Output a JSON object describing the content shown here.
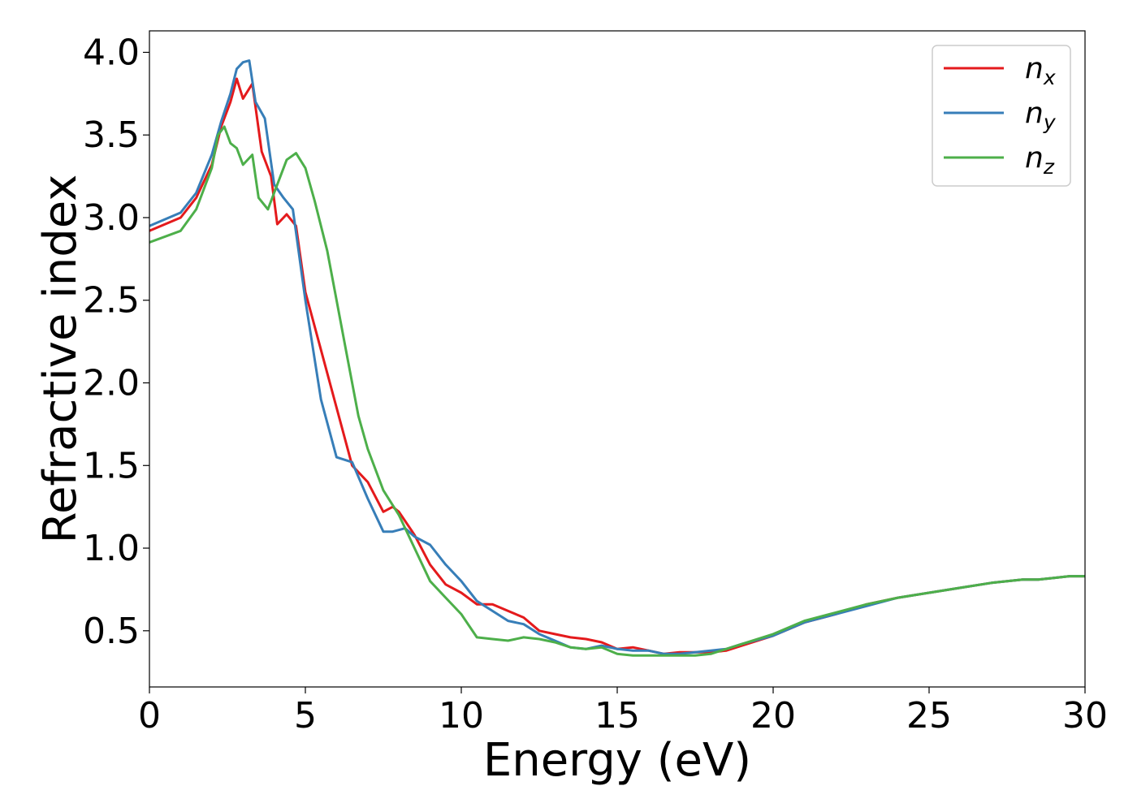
{
  "chart_data": {
    "type": "line",
    "title": "",
    "xlabel": "Energy (eV)",
    "ylabel": "Refractive index",
    "xlim": [
      0,
      30
    ],
    "ylim": [
      0.16,
      4.13
    ],
    "xticks": [
      0,
      5,
      10,
      15,
      20,
      25,
      30
    ],
    "yticks": [
      0.5,
      1.0,
      1.5,
      2.0,
      2.5,
      3.0,
      3.5,
      4.0
    ],
    "xtick_labels": [
      "0",
      "5",
      "10",
      "15",
      "20",
      "25",
      "30"
    ],
    "ytick_labels": [
      "0.5",
      "1.0",
      "1.5",
      "2.0",
      "2.5",
      "3.0",
      "3.5",
      "4.0"
    ],
    "grid": false,
    "legend_position": "top-right",
    "series": [
      {
        "name": "n_x",
        "label_base": "n",
        "label_sub": "x",
        "color": "#e41a1c",
        "x": [
          0,
          1,
          1.5,
          2,
          2.3,
          2.6,
          2.8,
          3.0,
          3.3,
          3.6,
          3.9,
          4.1,
          4.4,
          4.7,
          5.0,
          5.5,
          6.0,
          6.5,
          7.0,
          7.5,
          7.8,
          8.0,
          8.5,
          9.0,
          9.5,
          10.0,
          10.5,
          11.0,
          11.5,
          12.0,
          12.5,
          13.0,
          13.5,
          14.0,
          14.5,
          15.0,
          15.5,
          16.0,
          16.5,
          17.0,
          17.5,
          18.0,
          18.5,
          19.0,
          20.0,
          21.0,
          22.0,
          23.0,
          24.0,
          25.0,
          26.0,
          27.0,
          28.0,
          28.5,
          29.0,
          29.5,
          30.0
        ],
        "y": [
          2.92,
          3.0,
          3.12,
          3.32,
          3.55,
          3.7,
          3.84,
          3.72,
          3.81,
          3.4,
          3.25,
          2.96,
          3.02,
          2.95,
          2.55,
          2.2,
          1.85,
          1.5,
          1.4,
          1.22,
          1.25,
          1.22,
          1.08,
          0.9,
          0.78,
          0.73,
          0.66,
          0.66,
          0.62,
          0.58,
          0.5,
          0.48,
          0.46,
          0.45,
          0.43,
          0.39,
          0.4,
          0.38,
          0.36,
          0.37,
          0.37,
          0.37,
          0.38,
          0.41,
          0.47,
          0.55,
          0.6,
          0.66,
          0.7,
          0.73,
          0.76,
          0.79,
          0.81,
          0.81,
          0.82,
          0.83,
          0.83
        ]
      },
      {
        "name": "n_y",
        "label_base": "n",
        "label_sub": "y",
        "color": "#377eb8",
        "x": [
          0,
          1,
          1.5,
          2,
          2.3,
          2.6,
          2.8,
          3.0,
          3.2,
          3.4,
          3.7,
          4.0,
          4.3,
          4.6,
          5.0,
          5.5,
          6.0,
          6.5,
          7.0,
          7.5,
          7.8,
          8.2,
          8.5,
          9.0,
          9.5,
          10.0,
          10.5,
          11.0,
          11.5,
          12.0,
          12.5,
          13.0,
          13.5,
          14.0,
          14.5,
          15.0,
          15.5,
          16.0,
          16.5,
          17.0,
          17.5,
          18.0,
          18.5,
          19.0,
          20.0,
          21.0,
          22.0,
          23.0,
          24.0,
          25.0,
          26.0,
          27.0,
          28.0,
          28.5,
          29.0,
          29.5,
          30.0
        ],
        "y": [
          2.95,
          3.03,
          3.15,
          3.38,
          3.58,
          3.75,
          3.9,
          3.94,
          3.95,
          3.7,
          3.6,
          3.2,
          3.12,
          3.05,
          2.5,
          1.9,
          1.55,
          1.52,
          1.3,
          1.1,
          1.1,
          1.12,
          1.07,
          1.02,
          0.9,
          0.8,
          0.68,
          0.62,
          0.56,
          0.54,
          0.48,
          0.44,
          0.4,
          0.39,
          0.41,
          0.39,
          0.38,
          0.38,
          0.36,
          0.36,
          0.37,
          0.38,
          0.39,
          0.42,
          0.47,
          0.55,
          0.6,
          0.65,
          0.7,
          0.73,
          0.76,
          0.79,
          0.81,
          0.81,
          0.82,
          0.83,
          0.83
        ]
      },
      {
        "name": "n_z",
        "label_base": "n",
        "label_sub": "z",
        "color": "#4daf4a",
        "x": [
          0,
          1,
          1.5,
          2,
          2.2,
          2.4,
          2.6,
          2.8,
          3.0,
          3.3,
          3.5,
          3.8,
          4.1,
          4.4,
          4.7,
          5.0,
          5.3,
          5.7,
          6.0,
          6.3,
          6.7,
          7.0,
          7.5,
          8.0,
          8.5,
          9.0,
          9.5,
          10.0,
          10.5,
          11.0,
          11.5,
          12.0,
          12.5,
          13.0,
          13.5,
          14.0,
          14.5,
          15.0,
          15.5,
          16.0,
          16.5,
          17.0,
          17.5,
          18.0,
          18.5,
          19.0,
          20.0,
          21.0,
          22.0,
          23.0,
          24.0,
          25.0,
          26.0,
          27.0,
          28.0,
          28.5,
          29.0,
          29.5,
          30.0
        ],
        "y": [
          2.85,
          2.92,
          3.05,
          3.3,
          3.5,
          3.55,
          3.45,
          3.42,
          3.32,
          3.38,
          3.12,
          3.05,
          3.2,
          3.35,
          3.39,
          3.3,
          3.1,
          2.8,
          2.5,
          2.2,
          1.8,
          1.6,
          1.35,
          1.2,
          1.0,
          0.8,
          0.7,
          0.6,
          0.46,
          0.45,
          0.44,
          0.46,
          0.45,
          0.43,
          0.4,
          0.39,
          0.4,
          0.36,
          0.35,
          0.35,
          0.35,
          0.35,
          0.35,
          0.36,
          0.39,
          0.42,
          0.48,
          0.56,
          0.61,
          0.66,
          0.7,
          0.73,
          0.76,
          0.79,
          0.81,
          0.81,
          0.82,
          0.83,
          0.83
        ]
      }
    ]
  }
}
